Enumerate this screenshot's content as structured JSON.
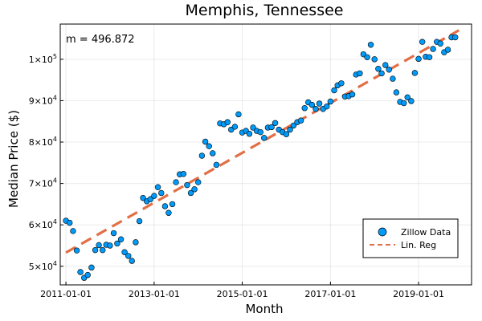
{
  "chart_data": {
    "type": "scatter",
    "title": "Memphis, Tennessee",
    "xlabel": "Month",
    "ylabel": "Median Price ($)",
    "annotation": "m = 496.872",
    "x_ticks": [
      "2011-01-01",
      "2013-01-01",
      "2015-01-01",
      "2017-01-01",
      "2019-01-01"
    ],
    "y_ticks": [
      {
        "value": 50000,
        "mantissa": "5",
        "exponent": "4"
      },
      {
        "value": 60000,
        "mantissa": "6",
        "exponent": "4"
      },
      {
        "value": 70000,
        "mantissa": "7",
        "exponent": "4"
      },
      {
        "value": 80000,
        "mantissa": "8",
        "exponent": "4"
      },
      {
        "value": 90000,
        "mantissa": "9",
        "exponent": "4"
      },
      {
        "value": 100000,
        "mantissa": "1",
        "exponent": "5"
      }
    ],
    "xlim": [
      "2010-11-15",
      "2020-03-15"
    ],
    "ylim": [
      45500,
      108500
    ],
    "grid": true,
    "legend_position": "bottom-right",
    "series": [
      {
        "name": "Zillow Data",
        "kind": "scatter",
        "color": "#009AF9",
        "points": [
          {
            "x": "2011-01-01",
            "y": 61000
          },
          {
            "x": "2011-02-01",
            "y": 60500
          },
          {
            "x": "2011-03-01",
            "y": 58500
          },
          {
            "x": "2011-04-01",
            "y": 53800
          },
          {
            "x": "2011-05-01",
            "y": 48600
          },
          {
            "x": "2011-06-01",
            "y": 47200
          },
          {
            "x": "2011-07-01",
            "y": 47900
          },
          {
            "x": "2011-08-01",
            "y": 49700
          },
          {
            "x": "2011-09-01",
            "y": 53900
          },
          {
            "x": "2011-10-01",
            "y": 55100
          },
          {
            "x": "2011-11-01",
            "y": 53900
          },
          {
            "x": "2011-12-01",
            "y": 55200
          },
          {
            "x": "2012-01-01",
            "y": 55000
          },
          {
            "x": "2012-02-01",
            "y": 58000
          },
          {
            "x": "2012-03-01",
            "y": 55500
          },
          {
            "x": "2012-04-01",
            "y": 56500
          },
          {
            "x": "2012-05-01",
            "y": 53400
          },
          {
            "x": "2012-06-01",
            "y": 52500
          },
          {
            "x": "2012-07-01",
            "y": 51300
          },
          {
            "x": "2012-08-01",
            "y": 55800
          },
          {
            "x": "2012-09-01",
            "y": 60900
          },
          {
            "x": "2012-10-01",
            "y": 66500
          },
          {
            "x": "2012-11-01",
            "y": 65700
          },
          {
            "x": "2012-12-01",
            "y": 66200
          },
          {
            "x": "2013-01-01",
            "y": 67000
          },
          {
            "x": "2013-02-01",
            "y": 69100
          },
          {
            "x": "2013-03-01",
            "y": 67700
          },
          {
            "x": "2013-04-01",
            "y": 64500
          },
          {
            "x": "2013-05-01",
            "y": 62900
          },
          {
            "x": "2013-06-01",
            "y": 65000
          },
          {
            "x": "2013-07-01",
            "y": 70300
          },
          {
            "x": "2013-08-01",
            "y": 72200
          },
          {
            "x": "2013-09-01",
            "y": 72300
          },
          {
            "x": "2013-10-01",
            "y": 69600
          },
          {
            "x": "2013-11-01",
            "y": 67700
          },
          {
            "x": "2013-12-01",
            "y": 68600
          },
          {
            "x": "2014-01-01",
            "y": 70300
          },
          {
            "x": "2014-02-01",
            "y": 76700
          },
          {
            "x": "2014-03-01",
            "y": 80100
          },
          {
            "x": "2014-04-01",
            "y": 79000
          },
          {
            "x": "2014-05-01",
            "y": 77300
          },
          {
            "x": "2014-06-01",
            "y": 74500
          },
          {
            "x": "2014-07-01",
            "y": 84500
          },
          {
            "x": "2014-08-01",
            "y": 84300
          },
          {
            "x": "2014-09-01",
            "y": 84800
          },
          {
            "x": "2014-10-01",
            "y": 83000
          },
          {
            "x": "2014-11-01",
            "y": 83700
          },
          {
            "x": "2014-12-01",
            "y": 86700
          },
          {
            "x": "2015-01-01",
            "y": 82300
          },
          {
            "x": "2015-02-01",
            "y": 82700
          },
          {
            "x": "2015-03-01",
            "y": 82000
          },
          {
            "x": "2015-04-01",
            "y": 83500
          },
          {
            "x": "2015-05-01",
            "y": 82700
          },
          {
            "x": "2015-06-01",
            "y": 82400
          },
          {
            "x": "2015-07-01",
            "y": 81000
          },
          {
            "x": "2015-08-01",
            "y": 83500
          },
          {
            "x": "2015-09-01",
            "y": 83600
          },
          {
            "x": "2015-10-01",
            "y": 84600
          },
          {
            "x": "2015-11-01",
            "y": 83000
          },
          {
            "x": "2015-12-01",
            "y": 82400
          },
          {
            "x": "2016-01-01",
            "y": 81900
          },
          {
            "x": "2016-02-01",
            "y": 83000
          },
          {
            "x": "2016-03-01",
            "y": 84000
          },
          {
            "x": "2016-04-01",
            "y": 84800
          },
          {
            "x": "2016-05-01",
            "y": 85200
          },
          {
            "x": "2016-06-01",
            "y": 88200
          },
          {
            "x": "2016-07-01",
            "y": 89600
          },
          {
            "x": "2016-08-01",
            "y": 89000
          },
          {
            "x": "2016-09-01",
            "y": 88000
          },
          {
            "x": "2016-10-01",
            "y": 89300
          },
          {
            "x": "2016-11-01",
            "y": 88000
          },
          {
            "x": "2016-12-01",
            "y": 88600
          },
          {
            "x": "2017-01-01",
            "y": 89800
          },
          {
            "x": "2017-02-01",
            "y": 92500
          },
          {
            "x": "2017-03-01",
            "y": 93700
          },
          {
            "x": "2017-04-01",
            "y": 94200
          },
          {
            "x": "2017-05-01",
            "y": 91000
          },
          {
            "x": "2017-06-01",
            "y": 91100
          },
          {
            "x": "2017-07-01",
            "y": 91500
          },
          {
            "x": "2017-08-01",
            "y": 96300
          },
          {
            "x": "2017-09-01",
            "y": 96600
          },
          {
            "x": "2017-10-01",
            "y": 101200
          },
          {
            "x": "2017-11-01",
            "y": 100500
          },
          {
            "x": "2017-12-01",
            "y": 103500
          },
          {
            "x": "2018-01-01",
            "y": 100000
          },
          {
            "x": "2018-02-01",
            "y": 97700
          },
          {
            "x": "2018-03-01",
            "y": 96600
          },
          {
            "x": "2018-04-01",
            "y": 98600
          },
          {
            "x": "2018-05-01",
            "y": 97500
          },
          {
            "x": "2018-06-01",
            "y": 95300
          },
          {
            "x": "2018-07-01",
            "y": 92000
          },
          {
            "x": "2018-08-01",
            "y": 89700
          },
          {
            "x": "2018-09-01",
            "y": 89400
          },
          {
            "x": "2018-10-01",
            "y": 90800
          },
          {
            "x": "2018-11-01",
            "y": 89900
          },
          {
            "x": "2018-12-01",
            "y": 96700
          },
          {
            "x": "2019-01-01",
            "y": 100100
          },
          {
            "x": "2019-02-01",
            "y": 104200
          },
          {
            "x": "2019-03-01",
            "y": 100600
          },
          {
            "x": "2019-04-01",
            "y": 100500
          },
          {
            "x": "2019-05-01",
            "y": 102500
          },
          {
            "x": "2019-06-01",
            "y": 104200
          },
          {
            "x": "2019-07-01",
            "y": 103800
          },
          {
            "x": "2019-08-01",
            "y": 101700
          },
          {
            "x": "2019-09-01",
            "y": 102300
          },
          {
            "x": "2019-10-01",
            "y": 105300
          },
          {
            "x": "2019-11-01",
            "y": 105300
          }
        ]
      },
      {
        "name": "Lin. Reg",
        "kind": "line",
        "color": "#E26F46",
        "dash": "dashed",
        "points": [
          {
            "x": "2011-01-01",
            "y": 53300
          },
          {
            "x": "2019-12-01",
            "y": 107000
          }
        ]
      }
    ]
  }
}
